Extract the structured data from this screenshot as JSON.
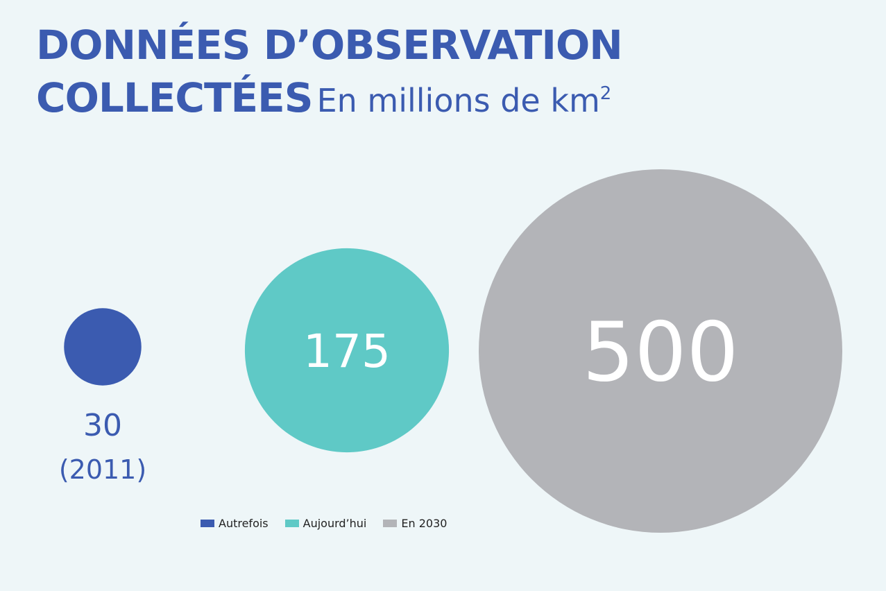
{
  "chart_data": {
    "type": "bubble",
    "title": "DONNÉES D’OBSERVATION",
    "title_line2": "COLLECTÉES",
    "subtitle": "En millions de km",
    "subtitle_sup": "2",
    "unit": "millions de km²",
    "series": [
      {
        "name": "Autrefois",
        "value": 30,
        "value_label": "30",
        "note": "(2011)",
        "color": "#3b5bb0"
      },
      {
        "name": "Aujourd’hui",
        "value": 175,
        "value_label": "175",
        "color": "#5fc9c6"
      },
      {
        "name": "En 2030",
        "value": 500,
        "value_label": "500",
        "color": "#b3b4b8"
      }
    ],
    "legend_position": "bottom-left",
    "grid": false
  }
}
